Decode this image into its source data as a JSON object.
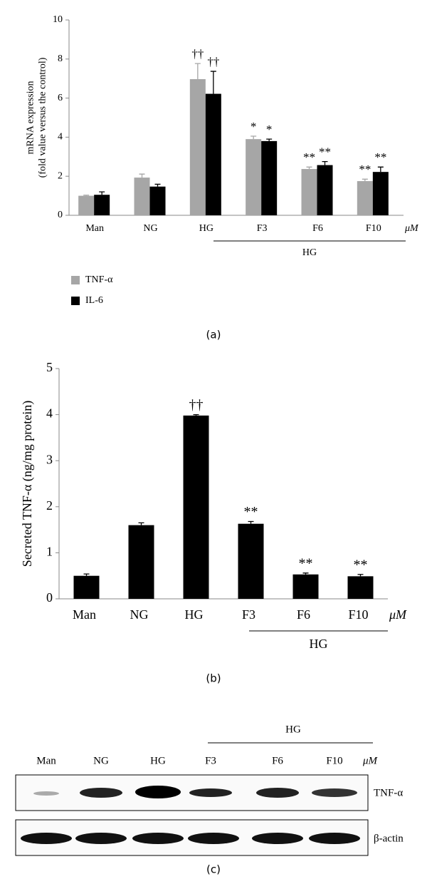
{
  "chart_data": [
    {
      "type": "bar",
      "panel_label": "(a)",
      "ylabel": [
        "mRNA expression",
        "(fold value versus the control)"
      ],
      "categories": [
        "Man",
        "NG",
        "HG",
        "F3",
        "F6",
        "F10"
      ],
      "x_unit": "μM",
      "group_label": "HG",
      "series": [
        {
          "name": "TNF-α",
          "color": "#a6a6a6",
          "values": [
            1.0,
            1.93,
            6.97,
            3.9,
            2.37,
            1.75
          ],
          "errors": [
            0.03,
            0.18,
            0.8,
            0.15,
            0.1,
            0.1
          ],
          "annotations": [
            null,
            null,
            "††",
            "*",
            "**",
            "**"
          ]
        },
        {
          "name": "IL-6",
          "color": "#000000",
          "values": [
            1.05,
            1.47,
            6.22,
            3.8,
            2.57,
            2.22
          ],
          "errors": [
            0.15,
            0.12,
            1.15,
            0.1,
            0.18,
            0.25
          ],
          "annotations": [
            null,
            null,
            "††",
            "*",
            "**",
            "**"
          ]
        }
      ],
      "ylim": [
        0,
        10
      ],
      "yticks": [
        0,
        2,
        4,
        6,
        8,
        10
      ],
      "legend": "bottom-left"
    },
    {
      "type": "bar",
      "panel_label": "(b)",
      "ylabel": [
        "Secreted TNF-α (ng/mg protein)"
      ],
      "categories": [
        "Man",
        "NG",
        "HG",
        "F3",
        "F6",
        "F10"
      ],
      "x_unit": "μM",
      "group_label": "HG",
      "color": "#000000",
      "values": [
        0.5,
        1.6,
        3.98,
        1.63,
        0.53,
        0.49
      ],
      "errors": [
        0.04,
        0.05,
        0.02,
        0.05,
        0.03,
        0.04
      ],
      "annotations": [
        null,
        null,
        "††",
        "**",
        "**",
        "**"
      ],
      "ylim": [
        0,
        5
      ],
      "yticks": [
        0,
        1,
        2,
        3,
        4,
        5
      ]
    }
  ],
  "blot": {
    "panel_label": "(c)",
    "group_label": "HG",
    "lanes": [
      "Man",
      "NG",
      "HG",
      "F3",
      "F6",
      "F10"
    ],
    "unit": "μM",
    "rows": [
      "TNF-α",
      "β-actin"
    ]
  }
}
